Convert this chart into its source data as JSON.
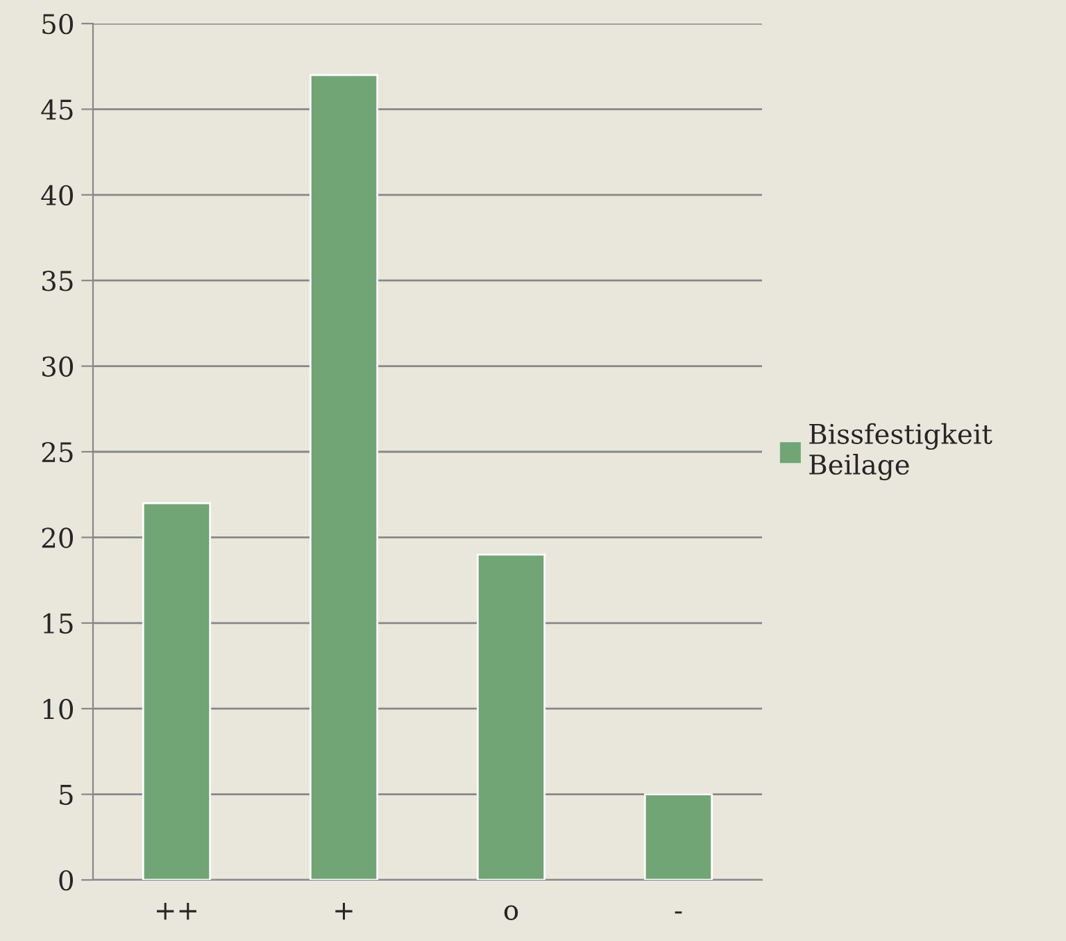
{
  "chart_data": {
    "type": "bar",
    "categories": [
      "++",
      "+",
      "o",
      "-"
    ],
    "series": [
      {
        "name": "Bissfestigkeit Beilage",
        "color": "#72a575",
        "values": [
          22,
          47,
          19,
          5
        ]
      }
    ],
    "ylim": [
      0,
      50
    ],
    "yticks": [
      0,
      5,
      10,
      15,
      20,
      25,
      30,
      35,
      40,
      45,
      50
    ],
    "grid": "y",
    "legend": "right"
  }
}
